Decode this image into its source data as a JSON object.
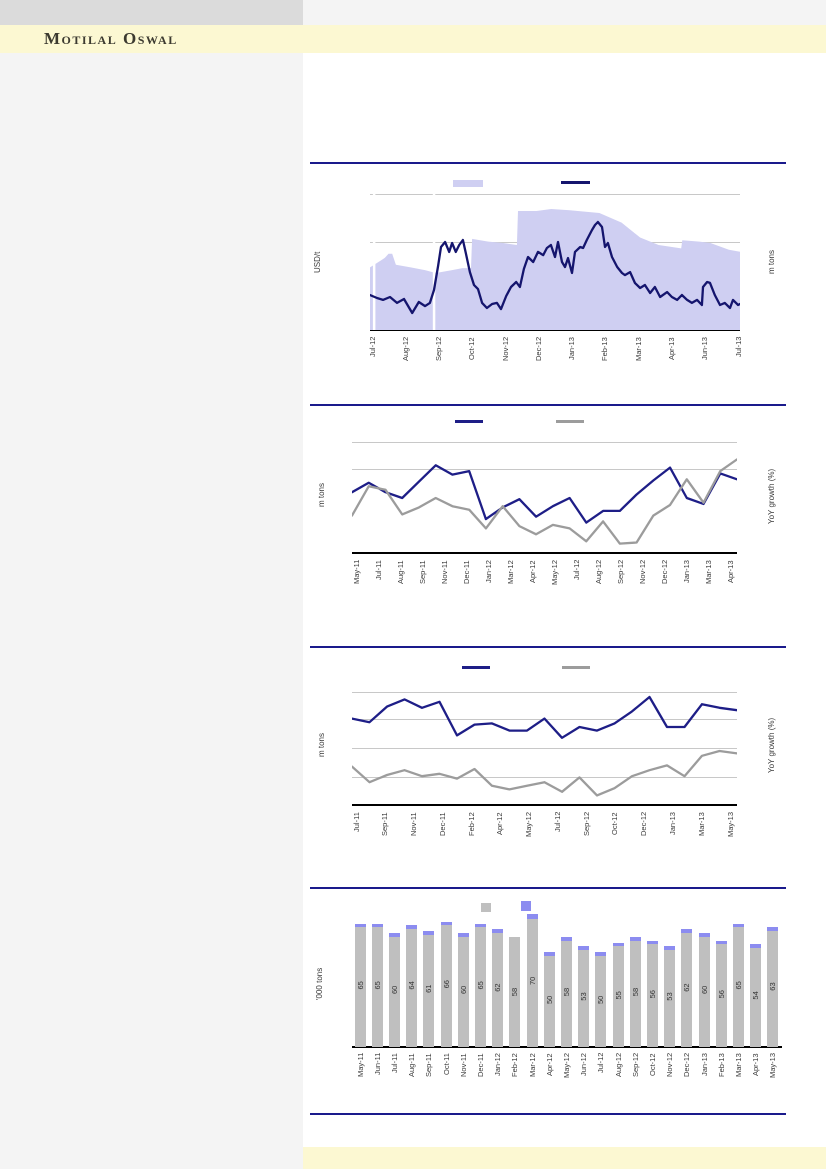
{
  "header": {
    "brand": "Motilal Oswal"
  },
  "colors": {
    "navy_rule": "#1a1a8c",
    "price_line_navy": "#15156e",
    "series_navy": "#1e1e87",
    "series_gray": "#9c9c9c",
    "area_fill": "#cfcff2",
    "bar_gray": "#bfbfbf",
    "bar_cap_purple": "#8c8cf0",
    "gridline": "#c8c8c8",
    "brand_bg": "#fcf8d2",
    "brand_text": "#3c3a30",
    "sidebar_gray": "#f4f4f4",
    "top_gray": "#dbdbdb"
  },
  "chart_data": [
    {
      "type": "area",
      "title": "",
      "left_axis": "USD/t",
      "right_axis": "m tons",
      "note": "dual-axis: shaded area (m tons, right axis) with price line (USD/t, left axis); y tick values not visible",
      "x_labels": [
        "Jul-12",
        "Aug-12",
        "Sep-12",
        "Oct-12",
        "Nov-12",
        "Dec-12",
        "Jan-13",
        "Feb-13",
        "Mar-13",
        "Apr-13",
        "Jun-13",
        "Jul-13"
      ],
      "legend": [
        {
          "swatch": "area-rect",
          "color": "#cfcff2"
        },
        {
          "swatch": "line",
          "color": "#15156e"
        }
      ],
      "gap_x_pct": [
        1.1,
        17.3
      ],
      "series": [
        {
          "name": "inventory-area",
          "style": "area",
          "color": "#cfcff2",
          "points_pct": [
            [
              0,
              46
            ],
            [
              4,
              53
            ],
            [
              5,
              56
            ],
            [
              6,
              56
            ],
            [
              7,
              48
            ],
            [
              11,
              46
            ],
            [
              15,
              44
            ],
            [
              17,
              42.5
            ],
            [
              18,
              42
            ],
            [
              22,
              44
            ],
            [
              25,
              45.5
            ],
            [
              27.3,
              45.5
            ],
            [
              27.6,
              67
            ],
            [
              32,
              65
            ],
            [
              36,
              64
            ],
            [
              39.7,
              62.5
            ],
            [
              40,
              87.5
            ],
            [
              45,
              87.5
            ],
            [
              49,
              89
            ],
            [
              54,
              88
            ],
            [
              62,
              86
            ],
            [
              68,
              79
            ],
            [
              73,
              68
            ],
            [
              78,
              62.5
            ],
            [
              84.1,
              60
            ],
            [
              84.4,
              66
            ],
            [
              89,
              65
            ],
            [
              92,
              64
            ],
            [
              97,
              59
            ],
            [
              100,
              57.5
            ]
          ]
        },
        {
          "name": "price-line",
          "style": "line",
          "color": "#15156e",
          "points_pct": [
            [
              0,
              25.7
            ],
            [
              1.9,
              23.5
            ],
            [
              3.5,
              22.1
            ],
            [
              5.4,
              24.3
            ],
            [
              7.3,
              19.9
            ],
            [
              9.2,
              22.8
            ],
            [
              11.4,
              12.5
            ],
            [
              13.2,
              20.6
            ],
            [
              14.9,
              17.6
            ],
            [
              16.2,
              19.9
            ],
            [
              17.3,
              29.4
            ],
            [
              18.4,
              47.1
            ],
            [
              19.2,
              61
            ],
            [
              20.3,
              64.7
            ],
            [
              21.4,
              57.4
            ],
            [
              22.2,
              64
            ],
            [
              23.2,
              57.4
            ],
            [
              24.1,
              62.5
            ],
            [
              25.1,
              66.2
            ],
            [
              25.9,
              56.6
            ],
            [
              27,
              42.6
            ],
            [
              28.1,
              33.1
            ],
            [
              29.2,
              30.1
            ],
            [
              30.3,
              19.9
            ],
            [
              31.6,
              16.2
            ],
            [
              33,
              19.1
            ],
            [
              34.3,
              19.9
            ],
            [
              35.4,
              15.4
            ],
            [
              36.8,
              25
            ],
            [
              38.1,
              31.6
            ],
            [
              39.5,
              35.3
            ],
            [
              40.5,
              31.6
            ],
            [
              41.6,
              44.9
            ],
            [
              42.7,
              53.7
            ],
            [
              44.1,
              50
            ],
            [
              45.4,
              57.4
            ],
            [
              46.8,
              55.1
            ],
            [
              47.8,
              60.3
            ],
            [
              48.9,
              62.5
            ],
            [
              50,
              53.7
            ],
            [
              50.8,
              64.7
            ],
            [
              51.9,
              50
            ],
            [
              52.7,
              46.3
            ],
            [
              53.5,
              52.9
            ],
            [
              54.6,
              41.9
            ],
            [
              55.4,
              57.4
            ],
            [
              56.8,
              61
            ],
            [
              57.6,
              60.3
            ],
            [
              58.6,
              66.2
            ],
            [
              60,
              73.5
            ],
            [
              60.8,
              77.2
            ],
            [
              61.6,
              79.4
            ],
            [
              62.7,
              75.7
            ],
            [
              63.5,
              61
            ],
            [
              64.3,
              64
            ],
            [
              65.4,
              53.7
            ],
            [
              66.8,
              46.3
            ],
            [
              68.1,
              41.9
            ],
            [
              68.9,
              40.4
            ],
            [
              70.3,
              42.6
            ],
            [
              71.6,
              34.6
            ],
            [
              73,
              30.9
            ],
            [
              74.3,
              33.1
            ],
            [
              75.7,
              27.2
            ],
            [
              77,
              31.6
            ],
            [
              78.4,
              24.3
            ],
            [
              80.3,
              27.9
            ],
            [
              81.6,
              24.3
            ],
            [
              83,
              22.1
            ],
            [
              84.3,
              25.7
            ],
            [
              85.7,
              22.1
            ],
            [
              87,
              19.9
            ],
            [
              88.4,
              22.1
            ],
            [
              89.7,
              18.4
            ],
            [
              90,
              31.6
            ],
            [
              91.1,
              35.3
            ],
            [
              91.9,
              34.6
            ],
            [
              93.2,
              25.7
            ],
            [
              94.6,
              18.4
            ],
            [
              95.9,
              19.9
            ],
            [
              97.3,
              16.2
            ],
            [
              98.1,
              22.1
            ],
            [
              99.5,
              18.4
            ],
            [
              100,
              19.1
            ]
          ]
        }
      ]
    },
    {
      "type": "line",
      "title": "",
      "left_axis": "m tons",
      "right_axis": "YoY growth (%)",
      "note": "y tick values not visible; series values are percent of plot height",
      "x_labels": [
        "May-11",
        "Jul-11",
        "Aug-11",
        "Sep-11",
        "Nov-11",
        "Dec-11",
        "Jan-12",
        "Mar-12",
        "Apr-12",
        "May-12",
        "Jul-12",
        "Aug-12",
        "Sep-12",
        "Nov-12",
        "Dec-12",
        "Jan-13",
        "Mar-13",
        "Apr-13"
      ],
      "legend": [
        {
          "swatch": "line",
          "color": "#1e1e87"
        },
        {
          "swatch": "line",
          "color": "#9c9c9c"
        }
      ],
      "series": [
        {
          "name": "series-navy",
          "style": "line",
          "color": "#1e1e87",
          "values_pct": [
            52,
            60,
            52,
            47,
            61,
            75,
            67,
            70,
            29,
            39,
            46,
            31,
            40,
            47,
            26,
            36,
            36,
            50,
            62,
            73,
            47,
            42,
            68,
            63
          ]
        },
        {
          "name": "series-gray",
          "style": "line",
          "color": "#9c9c9c",
          "values_pct": [
            32,
            57,
            54,
            33,
            39,
            47,
            40,
            37,
            21,
            40,
            23,
            16,
            24,
            21,
            10,
            27,
            8,
            9,
            32,
            41,
            63,
            43,
            70,
            80
          ]
        }
      ]
    },
    {
      "type": "line",
      "title": "",
      "left_axis": "m tons",
      "right_axis": "YoY growth (%)",
      "note": "y tick values not visible; series values are percent of plot height",
      "x_labels": [
        "Jul-11",
        "Sep-11",
        "Nov-11",
        "Dec-11",
        "Feb-12",
        "Apr-12",
        "May-12",
        "Jul-12",
        "Sep-12",
        "Oct-12",
        "Dec-12",
        "Jan-13",
        "Mar-13",
        "May-13"
      ],
      "legend": [
        {
          "swatch": "line",
          "color": "#1e1e87"
        },
        {
          "swatch": "line",
          "color": "#9c9c9c"
        }
      ],
      "series": [
        {
          "name": "series-navy",
          "style": "line",
          "color": "#1e1e87",
          "values_pct": [
            72,
            69,
            82,
            88,
            81,
            86,
            58,
            67,
            68,
            62,
            62,
            72,
            56,
            65,
            62,
            68,
            78,
            90,
            65,
            65,
            84,
            81,
            79
          ]
        },
        {
          "name": "series-gray",
          "style": "line",
          "color": "#9c9c9c",
          "values_pct": [
            32,
            19,
            25,
            29,
            24,
            26,
            22,
            30,
            16,
            13,
            16,
            19,
            11,
            23,
            8,
            14,
            24,
            29,
            33,
            24,
            41,
            45,
            43
          ]
        }
      ]
    },
    {
      "type": "bar",
      "title": "",
      "left_axis": "'000 tons",
      "x_labels": [
        "May-11",
        "Jun-11",
        "Jul-11",
        "Aug-11",
        "Sep-11",
        "Oct-11",
        "Nov-11",
        "Dec-11",
        "Jan-12",
        "Feb-12",
        "Mar-12",
        "Apr-12",
        "May-12",
        "Jun-12",
        "Jul-12",
        "Aug-12",
        "Sep-12",
        "Oct-12",
        "Nov-12",
        "Dec-12",
        "Jan-13",
        "Feb-13",
        "Mar-13",
        "Apr-13",
        "May-13"
      ],
      "legend": [
        {
          "swatch": "square",
          "color": "#bfbfbf"
        },
        {
          "swatch": "square",
          "color": "#8c8cf0"
        }
      ],
      "values": [
        65,
        65,
        60,
        64,
        61,
        66,
        60,
        65,
        62,
        58,
        70,
        50,
        58,
        53,
        50,
        55,
        58,
        56,
        53,
        62,
        60,
        56,
        65,
        54,
        63
      ],
      "cap_values": [
        2,
        2,
        2,
        2,
        2,
        2,
        2,
        2,
        2,
        0,
        2.5,
        2,
        2,
        2,
        2,
        2,
        2,
        2,
        2,
        2,
        2,
        2,
        2,
        2,
        2
      ],
      "bar_color": "#bfbfbf",
      "cap_color": "#8c8cf0",
      "ylim_start": 0
    }
  ]
}
